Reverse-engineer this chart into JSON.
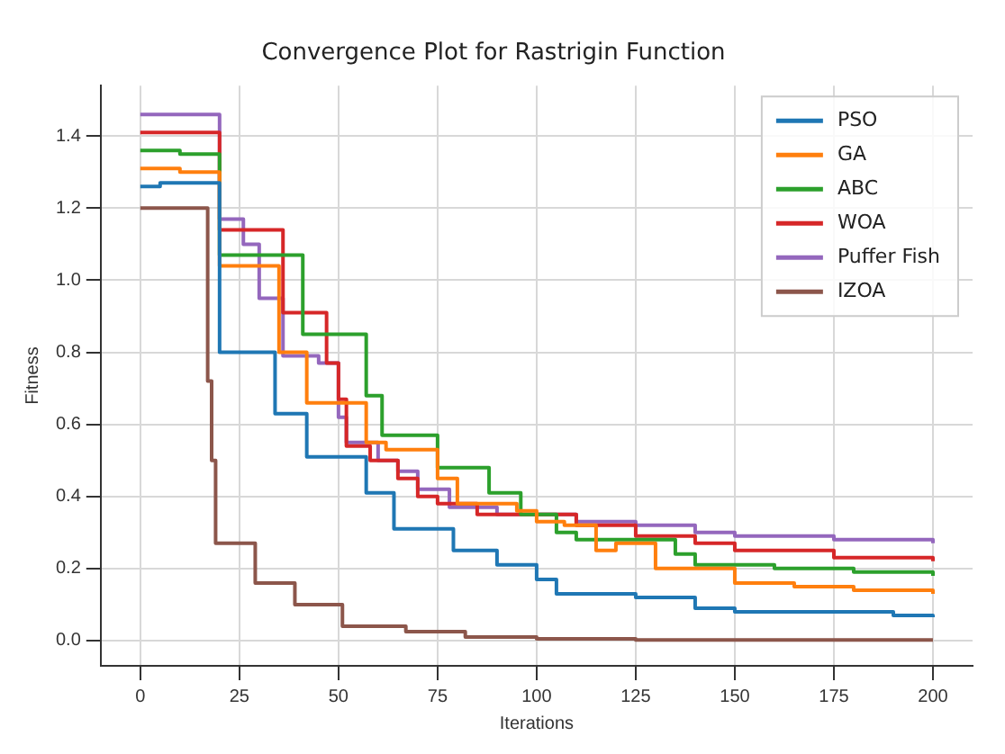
{
  "chart_data": {
    "type": "step",
    "title": "Convergence Plot for Rastrigin Function",
    "xlabel": "Iterations",
    "ylabel": "Fitness",
    "xlim": [
      -10,
      210
    ],
    "xticks": [
      0,
      25,
      50,
      75,
      100,
      125,
      150,
      175,
      200
    ],
    "ylim": [
      -0.07,
      1.54
    ],
    "yticks": [
      {
        "value": 0,
        "label": "0.0"
      },
      0.2,
      0.4,
      0.6,
      0.8,
      {
        "value": 1,
        "label": "1.0"
      },
      1.2,
      1.4
    ],
    "grid": true,
    "legend": "top right",
    "marker": "none",
    "line_style": "solid",
    "series": [
      {
        "name": "PSO",
        "color": "#1f77b4",
        "x": [
          0,
          5,
          10,
          20,
          34,
          42,
          57,
          64,
          79,
          90,
          100,
          105,
          110,
          125,
          140,
          150,
          175,
          190,
          200
        ],
        "values": [
          1.26,
          1.27,
          1.27,
          0.8,
          0.63,
          0.51,
          0.41,
          0.31,
          0.25,
          0.21,
          0.17,
          0.13,
          0.13,
          0.12,
          0.09,
          0.08,
          0.08,
          0.07,
          0.065
        ]
      },
      {
        "name": "GA",
        "color": "#ff7f0e",
        "x": [
          0,
          10,
          20,
          35,
          42,
          57,
          62,
          75,
          80,
          88,
          95,
          100,
          107,
          115,
          120,
          130,
          140,
          150,
          165,
          180,
          200
        ],
        "values": [
          1.31,
          1.3,
          1.04,
          0.8,
          0.66,
          0.55,
          0.53,
          0.45,
          0.38,
          0.38,
          0.36,
          0.33,
          0.32,
          0.25,
          0.27,
          0.2,
          0.2,
          0.16,
          0.15,
          0.14,
          0.13
        ]
      },
      {
        "name": "ABC",
        "color": "#2ca02c",
        "x": [
          0,
          10,
          20,
          41,
          57,
          61,
          75,
          88,
          96,
          105,
          110,
          125,
          135,
          140,
          160,
          180,
          200
        ],
        "values": [
          1.36,
          1.35,
          1.07,
          0.85,
          0.68,
          0.57,
          0.48,
          0.41,
          0.35,
          0.3,
          0.28,
          0.28,
          0.24,
          0.21,
          0.2,
          0.19,
          0.18
        ]
      },
      {
        "name": "WOA",
        "color": "#d62728",
        "x": [
          0,
          10,
          20,
          36,
          47,
          50,
          52,
          58,
          65,
          70,
          75,
          85,
          100,
          110,
          125,
          140,
          150,
          175,
          200
        ],
        "values": [
          1.41,
          1.41,
          1.14,
          0.91,
          0.77,
          0.67,
          0.54,
          0.5,
          0.45,
          0.4,
          0.38,
          0.35,
          0.35,
          0.32,
          0.29,
          0.27,
          0.25,
          0.23,
          0.22
        ]
      },
      {
        "name": "Puffer Fish",
        "color": "#9467bd",
        "x": [
          0,
          10,
          20,
          26,
          30,
          36,
          45,
          50,
          52,
          60,
          65,
          70,
          78,
          90,
          100,
          110,
          125,
          140,
          150,
          175,
          200
        ],
        "values": [
          1.46,
          1.46,
          1.17,
          1.1,
          0.95,
          0.79,
          0.77,
          0.62,
          0.55,
          0.5,
          0.47,
          0.42,
          0.37,
          0.35,
          0.35,
          0.33,
          0.32,
          0.3,
          0.29,
          0.28,
          0.27
        ]
      },
      {
        "name": "IZOA",
        "color": "#8c564b",
        "x": [
          0,
          17,
          18,
          19,
          29,
          39,
          51,
          67,
          82,
          100,
          125,
          200
        ],
        "values": [
          1.2,
          0.72,
          0.5,
          0.27,
          0.16,
          0.1,
          0.04,
          0.025,
          0.01,
          0.005,
          0.002,
          0.002
        ]
      }
    ]
  }
}
